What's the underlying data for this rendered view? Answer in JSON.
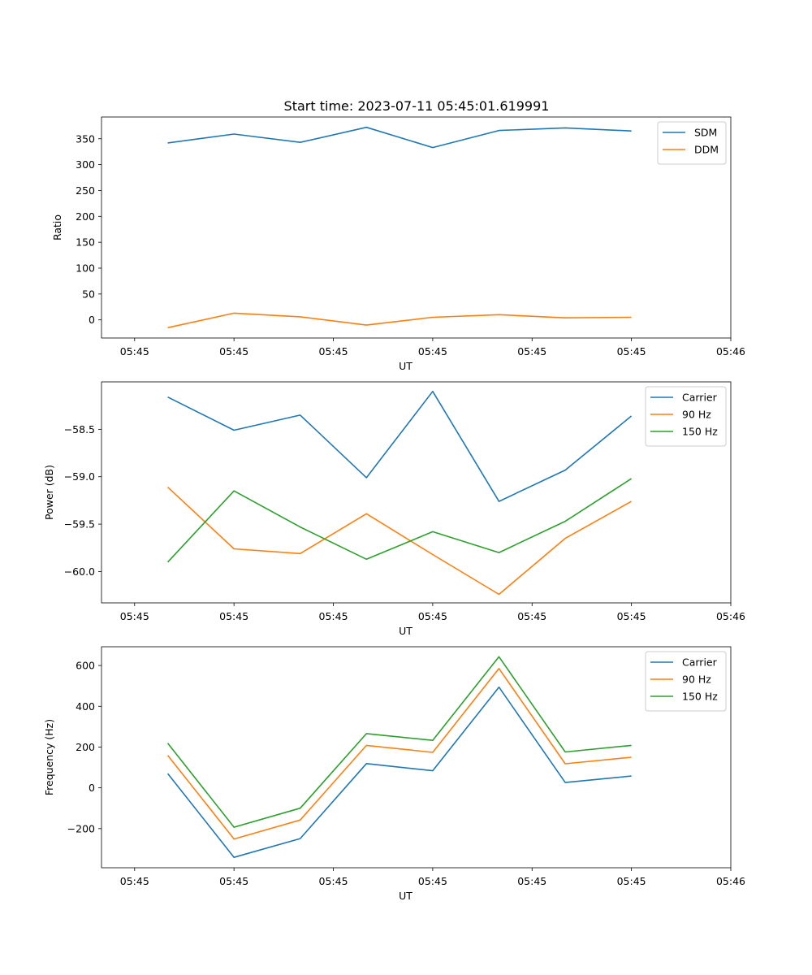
{
  "figure_title": "Start time: 2023-07-11 05:45:01.619991",
  "colors": {
    "blue": "#1f77b4",
    "orange": "#ff7f0e",
    "green": "#2ca02c"
  },
  "chart_data": [
    {
      "type": "line",
      "title": "Start time: 2023-07-11 05:45:01.619991",
      "xlabel": "UT",
      "ylabel": "Ratio",
      "x": [
        1,
        2,
        3,
        4,
        5,
        6,
        7,
        8
      ],
      "xlim": [
        0.0,
        9.5
      ],
      "x_ticks": [
        0.5,
        2.0,
        3.5,
        5.0,
        6.5,
        8.0,
        9.5
      ],
      "x_tick_labels": [
        "05:45",
        "05:45",
        "05:45",
        "05:45",
        "05:45",
        "05:45",
        "05:46"
      ],
      "ylim": [
        -35,
        392
      ],
      "y_ticks": [
        0,
        50,
        100,
        150,
        200,
        250,
        300,
        350
      ],
      "y_tick_labels": [
        "0",
        "50",
        "100",
        "150",
        "200",
        "250",
        "300",
        "350"
      ],
      "legend_position": "top-right",
      "series": [
        {
          "name": "SDM",
          "color": "#1f77b4",
          "values": [
            342,
            359,
            343,
            372,
            333,
            366,
            371,
            365
          ]
        },
        {
          "name": "DDM",
          "color": "#ff7f0e",
          "values": [
            -15,
            13,
            6,
            -10,
            5,
            10,
            4,
            5
          ]
        }
      ]
    },
    {
      "type": "line",
      "title": "",
      "xlabel": "UT",
      "ylabel": "Power (dB)",
      "x": [
        1,
        2,
        3,
        4,
        5,
        6,
        7,
        8
      ],
      "xlim": [
        0.0,
        9.5
      ],
      "x_ticks": [
        0.5,
        2.0,
        3.5,
        5.0,
        6.5,
        8.0,
        9.5
      ],
      "x_tick_labels": [
        "05:45",
        "05:45",
        "05:45",
        "05:45",
        "05:45",
        "05:45",
        "05:46"
      ],
      "ylim": [
        -60.33,
        -58.0
      ],
      "y_ticks": [
        -60.0,
        -59.5,
        -59.0,
        -58.5
      ],
      "y_tick_labels": [
        "−60.0",
        "−59.5",
        "−59.0",
        "−58.5"
      ],
      "legend_position": "top-right",
      "series": [
        {
          "name": "Carrier",
          "color": "#1f77b4",
          "values": [
            -58.16,
            -58.51,
            -58.35,
            -59.01,
            -58.1,
            -59.26,
            -58.93,
            -58.36
          ]
        },
        {
          "name": "90 Hz",
          "color": "#ff7f0e",
          "values": [
            -59.11,
            -59.76,
            -59.81,
            -59.39,
            -59.82,
            -60.24,
            -59.65,
            -59.26
          ]
        },
        {
          "name": "150 Hz",
          "color": "#2ca02c",
          "values": [
            -59.9,
            -59.15,
            -59.53,
            -59.87,
            -59.58,
            -59.8,
            -59.47,
            -59.02
          ]
        }
      ]
    },
    {
      "type": "line",
      "title": "",
      "xlabel": "UT",
      "ylabel": "Frequency (Hz)",
      "x": [
        1,
        2,
        3,
        4,
        5,
        6,
        7,
        8
      ],
      "xlim": [
        0.0,
        9.5
      ],
      "x_ticks": [
        0.5,
        2.0,
        3.5,
        5.0,
        6.5,
        8.0,
        9.5
      ],
      "x_tick_labels": [
        "05:45",
        "05:45",
        "05:45",
        "05:45",
        "05:45",
        "05:45",
        "05:46"
      ],
      "ylim": [
        -392,
        692
      ],
      "y_ticks": [
        -200,
        0,
        200,
        400,
        600
      ],
      "y_tick_labels": [
        "−200",
        "0",
        "200",
        "400",
        "600"
      ],
      "legend_position": "top-right",
      "series": [
        {
          "name": "Carrier",
          "color": "#1f77b4",
          "values": [
            70,
            -341,
            -249,
            119,
            84,
            494,
            26,
            58
          ]
        },
        {
          "name": "90 Hz",
          "color": "#ff7f0e",
          "values": [
            159,
            -251,
            -158,
            208,
            174,
            585,
            118,
            150
          ]
        },
        {
          "name": "150 Hz",
          "color": "#2ca02c",
          "values": [
            219,
            -193,
            -100,
            266,
            233,
            643,
            176,
            208
          ]
        }
      ]
    }
  ]
}
